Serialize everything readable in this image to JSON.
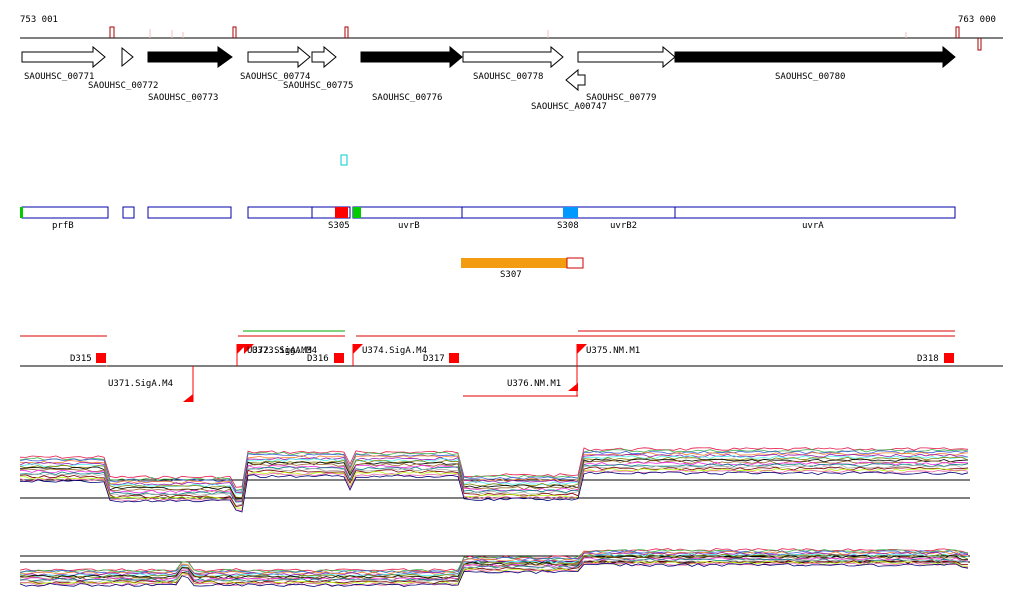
{
  "axis": {
    "start": "753 001",
    "end": "763 000"
  },
  "genes": [
    "SAOUHSC_00771",
    "SAOUHSC_00772",
    "SAOUHSC_00773",
    "SAOUHSC_00774",
    "SAOUHSC_00775",
    "SAOUHSC_00776",
    "SAOUHSC_00778",
    "SAOUHSC_A00747",
    "SAOUHSC_00779",
    "SAOUHSC_00780"
  ],
  "features": [
    "prfB",
    "S305",
    "uvrB",
    "S308",
    "uvrB2",
    "uvrA",
    "S307"
  ],
  "segments": [
    "D315",
    "U371.SigA.M4",
    "U372.SigA.M3",
    "U373.SigA.M4",
    "D316",
    "U374.SigA.M4",
    "D317",
    "U376.NM.M1",
    "U375.NM.M1",
    "D318"
  ]
}
